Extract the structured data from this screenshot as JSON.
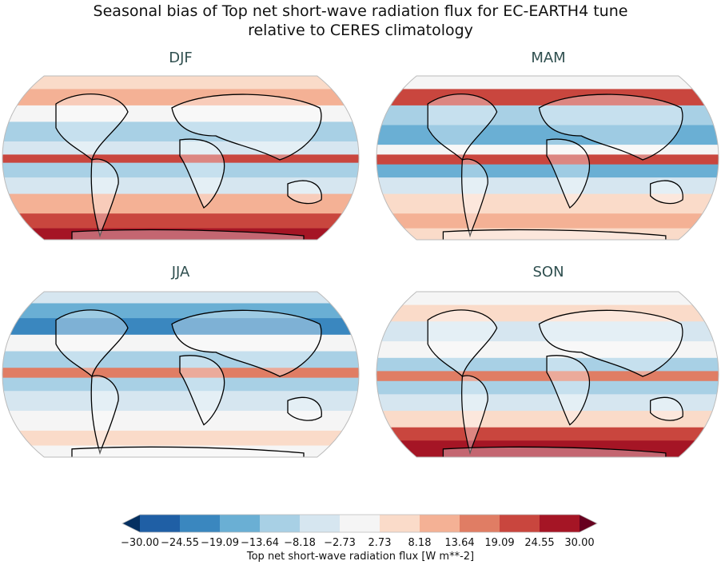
{
  "title_line1": "Seasonal bias of Top net short-wave radiation flux for EC-EARTH4 tune",
  "title_line2": "relative to CERES climatology",
  "panels": [
    {
      "label": "DJF"
    },
    {
      "label": "MAM"
    },
    {
      "label": "JJA"
    },
    {
      "label": "SON"
    }
  ],
  "colorbar": {
    "label": "Top net short-wave radiation flux [W m**-2]",
    "ticks": [
      "−30.00",
      "−24.55",
      "−19.09",
      "−13.64",
      "−8.18",
      "−2.73",
      "2.73",
      "8.18",
      "13.64",
      "19.09",
      "24.55",
      "30.00"
    ],
    "colors": [
      "#1f5fa5",
      "#3a87bf",
      "#6aafd4",
      "#a8d0e5",
      "#d6e6f0",
      "#f5f5f5",
      "#fadbc9",
      "#f4b195",
      "#e07d64",
      "#c9463e",
      "#a51525"
    ],
    "extend_low": "#053061",
    "extend_high": "#67001f",
    "range": [
      -30,
      30
    ],
    "colormap": "RdBu_r"
  }
}
